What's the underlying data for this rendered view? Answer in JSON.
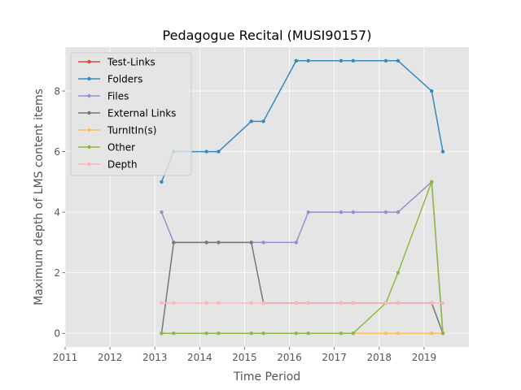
{
  "chart_data": {
    "type": "line",
    "title": "Pedagogue Recital (MUSI90157)",
    "xlabel": "Time Period",
    "ylabel": "Maximum depth of LMS content items",
    "xlim": [
      2011,
      2020
    ],
    "ylim": [
      -0.45,
      9.45
    ],
    "xticks": [
      2011,
      2012,
      2013,
      2014,
      2015,
      2016,
      2017,
      2018,
      2019
    ],
    "xtick_labels": [
      "2011",
      "2012",
      "2013",
      "2014",
      "2015",
      "2016",
      "2017",
      "2018",
      "2019"
    ],
    "yticks": [
      0,
      2,
      4,
      6,
      8
    ],
    "ytick_labels": [
      "0",
      "2",
      "4",
      "6",
      "8"
    ],
    "grid": true,
    "legend_position": "upper-left",
    "x": [
      2013.15,
      2013.42,
      2014.15,
      2014.42,
      2015.15,
      2015.42,
      2016.15,
      2016.42,
      2017.15,
      2017.42,
      2018.15,
      2018.42,
      2019.17,
      2019.42
    ],
    "series": [
      {
        "name": "Test-Links",
        "color": "#E24A33",
        "values": [
          null,
          null,
          null,
          null,
          null,
          null,
          null,
          null,
          null,
          null,
          null,
          null,
          null,
          null
        ]
      },
      {
        "name": "Folders",
        "color": "#348ABD",
        "values": [
          5,
          6,
          6,
          6,
          7,
          7,
          9,
          9,
          9,
          9,
          9,
          9,
          8,
          6
        ]
      },
      {
        "name": "Files",
        "color": "#988ED5",
        "values": [
          4,
          3,
          3,
          3,
          3,
          3,
          3,
          4,
          4,
          4,
          4,
          4,
          5,
          0
        ]
      },
      {
        "name": "External Links",
        "color": "#777777",
        "values": [
          0,
          3,
          3,
          3,
          3,
          1,
          1,
          1,
          1,
          1,
          1,
          1,
          1,
          0
        ]
      },
      {
        "name": "TurnItIn(s)",
        "color": "#FBC15E",
        "values": [
          null,
          null,
          null,
          null,
          null,
          null,
          null,
          null,
          null,
          0,
          0,
          0,
          0,
          0
        ]
      },
      {
        "name": "Other",
        "color": "#8EBA42",
        "values": [
          0,
          0,
          0,
          0,
          0,
          0,
          0,
          0,
          0,
          0,
          1,
          2,
          5,
          0
        ]
      },
      {
        "name": "Depth",
        "color": "#FFB5B8",
        "values": [
          1,
          1,
          1,
          1,
          1,
          1,
          1,
          1,
          1,
          1,
          1,
          1,
          1,
          1
        ]
      }
    ]
  }
}
